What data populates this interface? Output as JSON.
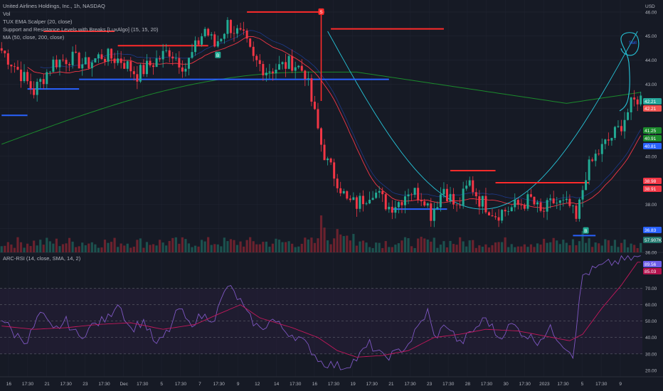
{
  "header": {
    "title": "United Airlines Holdings, Inc., 1h, NASDAQ",
    "vol": "Vol",
    "ind1": "TUX EMA Scalper (20, close)",
    "ind2": "Support and Resistance Levels with Breaks [LuxAlgo] (15, 15, 20)",
    "ind3": "MA (50, close, 200, close)",
    "rsi": "ARC-RSI (14, close, SMA, 14, 2)"
  },
  "annotations": {
    "sell_note": "Sell"
  },
  "chart_data": [
    {
      "type": "candlestick",
      "currency": "USD",
      "ylim": [
        36.0,
        46.5
      ],
      "y_ticks": [
        46.0,
        45.0,
        44.0,
        43.0,
        42.0,
        41.0,
        40.0,
        39.0,
        38.0,
        37.0,
        36.0
      ],
      "x_ticks": [
        "16",
        "17:30",
        "21",
        "17:30",
        "23",
        "17:30",
        "Dec",
        "17:30",
        "5",
        "17:30",
        "7",
        "17:30",
        "9",
        "12",
        "14",
        "17:30",
        "16",
        "17:30",
        "19",
        "17:30",
        "21",
        "17:30",
        "23",
        "17:30",
        "28",
        "17:30",
        "30",
        "17:30",
        "2023",
        "17:30",
        "5",
        "17:30",
        "9"
      ],
      "close_path": [
        [
          0,
          44.4
        ],
        [
          5,
          43.6
        ],
        [
          10,
          42.7
        ],
        [
          16,
          43.9
        ],
        [
          21,
          44.1
        ],
        [
          26,
          43.8
        ],
        [
          31,
          44.2
        ],
        [
          37,
          44.0
        ],
        [
          42,
          43.4
        ],
        [
          47,
          43.9
        ],
        [
          52,
          44.4
        ],
        [
          57,
          43.7
        ],
        [
          63,
          45.3
        ],
        [
          66,
          44.6
        ],
        [
          70,
          45.5
        ],
        [
          75,
          44.9
        ],
        [
          78,
          44.0
        ],
        [
          82,
          43.6
        ],
        [
          86,
          43.7
        ],
        [
          90,
          43.9
        ],
        [
          94,
          43.5
        ],
        [
          96,
          42.3
        ],
        [
          99,
          40.5
        ],
        [
          101,
          39.7
        ],
        [
          104,
          39.0
        ],
        [
          107,
          38.1
        ],
        [
          110,
          38.0
        ],
        [
          115,
          38.6
        ],
        [
          120,
          37.9
        ],
        [
          123,
          38.1
        ],
        [
          126,
          38.6
        ],
        [
          131,
          38.3
        ],
        [
          133,
          37.6
        ],
        [
          137,
          38.7
        ],
        [
          141,
          37.8
        ],
        [
          145,
          38.9
        ],
        [
          148,
          38.2
        ],
        [
          153,
          37.6
        ],
        [
          159,
          37.9
        ],
        [
          164,
          38.2
        ],
        [
          167,
          37.6
        ],
        [
          171,
          38.1
        ],
        [
          176,
          37.9
        ],
        [
          178,
          37.3
        ],
        [
          181,
          39.3
        ],
        [
          184,
          40.0
        ],
        [
          187,
          40.5
        ],
        [
          191,
          41.1
        ],
        [
          195,
          42.1
        ],
        [
          197,
          42.4
        ]
      ],
      "support_resistance": [
        {
          "level": 45.2,
          "from": 13,
          "to": 35,
          "kind": "resistance"
        },
        {
          "level": 44.6,
          "from": 36,
          "to": 64,
          "kind": "resistance"
        },
        {
          "level": 43.2,
          "from": 24,
          "to": 120,
          "kind": "support"
        },
        {
          "level": 42.8,
          "from": 8,
          "to": 24,
          "kind": "support"
        },
        {
          "level": 41.7,
          "from": 0,
          "to": 8,
          "kind": "support"
        },
        {
          "level": 46.0,
          "from": 76,
          "to": 100,
          "kind": "resistance"
        },
        {
          "level": 45.3,
          "from": 102,
          "to": 137,
          "kind": "resistance"
        },
        {
          "level": 39.4,
          "from": 139,
          "to": 153,
          "kind": "resistance"
        },
        {
          "level": 38.9,
          "from": 153,
          "to": 182,
          "kind": "resistance"
        },
        {
          "level": 37.8,
          "from": 121,
          "to": 138,
          "kind": "support"
        },
        {
          "level": 36.7,
          "from": 177,
          "to": 184,
          "kind": "support"
        }
      ],
      "price_labels": [
        {
          "value": "42.21",
          "color": "#26a69a"
        },
        {
          "value": "42.21",
          "color": "#ef5350"
        },
        {
          "value": "41.25",
          "color": "#1b8a2c"
        },
        {
          "value": "40.91",
          "color": "#1b8a2c"
        },
        {
          "value": "40.81",
          "color": "#2962ff"
        },
        {
          "value": "38.98",
          "color": "#f23645"
        },
        {
          "value": "38.91",
          "color": "#f23645"
        },
        {
          "value": "36.83",
          "color": "#2962ff"
        },
        {
          "value": "57.907K",
          "color": "#22776e"
        }
      ],
      "signals": [
        {
          "label": "S",
          "kind": "sell",
          "x": 99,
          "price": 46.0
        },
        {
          "label": "B",
          "kind": "buy",
          "x": 67,
          "price": 44.2
        },
        {
          "label": "B",
          "kind": "buy",
          "x": 181,
          "price": 36.9
        }
      ]
    },
    {
      "type": "line",
      "name": "ARC-RSI",
      "ylim": [
        16,
        92
      ],
      "y_ticks": [
        80.0,
        70.0,
        60.0,
        50.0,
        40.0,
        30.0,
        20.0
      ],
      "levels": [
        70,
        60,
        50,
        40,
        30
      ],
      "rsi_path": [
        [
          0,
          52
        ],
        [
          4,
          42
        ],
        [
          8,
          38
        ],
        [
          12,
          55
        ],
        [
          16,
          44
        ],
        [
          20,
          50
        ],
        [
          24,
          40
        ],
        [
          28,
          47
        ],
        [
          33,
          52
        ],
        [
          36,
          62
        ],
        [
          40,
          45
        ],
        [
          44,
          50
        ],
        [
          48,
          35
        ],
        [
          52,
          45
        ],
        [
          55,
          58
        ],
        [
          58,
          48
        ],
        [
          62,
          53
        ],
        [
          66,
          52
        ],
        [
          70,
          72
        ],
        [
          74,
          62
        ],
        [
          76,
          54
        ],
        [
          80,
          45
        ],
        [
          84,
          51
        ],
        [
          88,
          44
        ],
        [
          92,
          40
        ],
        [
          96,
          32
        ],
        [
          99,
          25
        ],
        [
          103,
          23
        ],
        [
          106,
          22
        ],
        [
          110,
          27
        ],
        [
          114,
          36
        ],
        [
          118,
          28
        ],
        [
          122,
          30
        ],
        [
          126,
          36
        ],
        [
          132,
          56
        ],
        [
          134,
          40
        ],
        [
          138,
          48
        ],
        [
          142,
          36
        ],
        [
          146,
          44
        ],
        [
          150,
          52
        ],
        [
          154,
          40
        ],
        [
          158,
          48
        ],
        [
          162,
          42
        ],
        [
          166,
          38
        ],
        [
          170,
          45
        ],
        [
          174,
          36
        ],
        [
          177,
          30
        ],
        [
          180,
          78
        ],
        [
          184,
          82
        ],
        [
          188,
          85
        ],
        [
          192,
          87
        ],
        [
          197,
          89
        ]
      ],
      "signal_path": [
        [
          0,
          47
        ],
        [
          10,
          45
        ],
        [
          20,
          46
        ],
        [
          30,
          48
        ],
        [
          40,
          49
        ],
        [
          50,
          45
        ],
        [
          60,
          48
        ],
        [
          68,
          55
        ],
        [
          74,
          60
        ],
        [
          80,
          52
        ],
        [
          90,
          46
        ],
        [
          98,
          40
        ],
        [
          104,
          32
        ],
        [
          110,
          28
        ],
        [
          118,
          29
        ],
        [
          126,
          32
        ],
        [
          134,
          40
        ],
        [
          142,
          42
        ],
        [
          150,
          45
        ],
        [
          160,
          44
        ],
        [
          168,
          41
        ],
        [
          176,
          38
        ],
        [
          180,
          42
        ],
        [
          186,
          58
        ],
        [
          192,
          72
        ],
        [
          197,
          86
        ]
      ],
      "value_labels": [
        {
          "value": "89.56",
          "color": "#6c5ce7"
        },
        {
          "value": "85.03",
          "color": "#b2124d"
        }
      ]
    }
  ],
  "colors": {
    "bg": "#161a25",
    "up": "#22ab94",
    "down": "#f23645",
    "resistance": "#ff2b2b",
    "support": "#2962ff",
    "ema": "#f23645",
    "ma50": "#1e3a8a",
    "ma200": "#1b8a2c",
    "arc": "#26c6da",
    "rsi_line": "#7e57c2",
    "rsi_signal": "#c2185b"
  }
}
